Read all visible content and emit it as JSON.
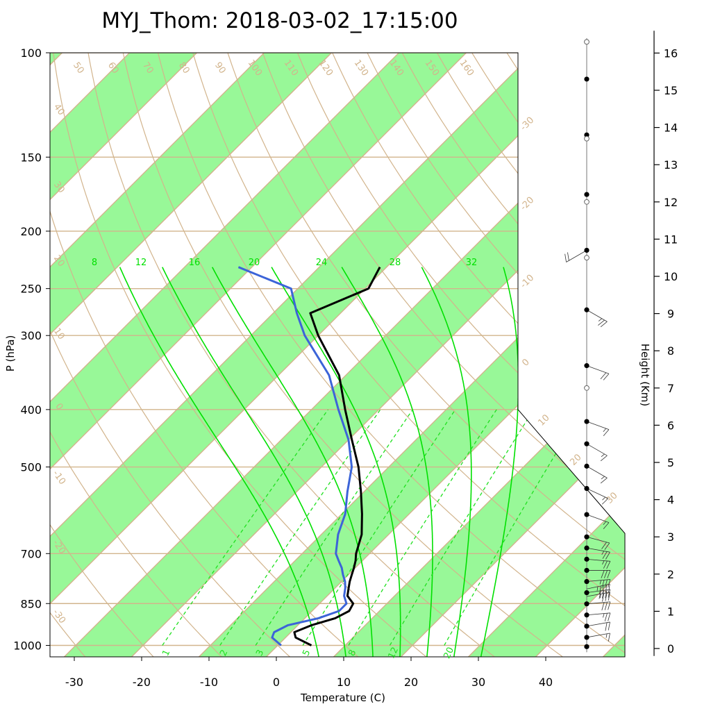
{
  "chart_data": {
    "type": "line",
    "title": "MYJ_Thom: 2018-03-02_17:15:00",
    "xlabel": "Temperature (C)",
    "ylabel": "P (hPa)",
    "y2label": "Height (Km)",
    "xlim": [
      -34,
      52
    ],
    "ylim": [
      1050,
      100
    ],
    "x_ticks": [
      "-30",
      "-20",
      "-10",
      "0",
      "10",
      "20",
      "30",
      "40"
    ],
    "pressure_levels": [
      "100",
      "150",
      "200",
      "250",
      "300",
      "400",
      "500",
      "700",
      "850",
      "1000"
    ],
    "height_ticks": [
      "0",
      "1",
      "2",
      "3",
      "4",
      "5",
      "6",
      "7",
      "8",
      "9",
      "10",
      "11",
      "12",
      "13",
      "14",
      "15",
      "16"
    ],
    "isotherm_labels": [
      "-30",
      "-20",
      "-10",
      "0",
      "10",
      "20",
      "30"
    ],
    "dry_adiabat_labels": [
      "50",
      "60",
      "70",
      "80",
      "90",
      "100",
      "110",
      "120",
      "130",
      "140",
      "150",
      "160"
    ],
    "left_edge_labels": [
      "40",
      "30",
      "20",
      "10",
      "0",
      "-10",
      "-20",
      "-30"
    ],
    "moist_adiabat_labels": [
      "8",
      "12",
      "16",
      "20",
      "24",
      "28",
      "32"
    ],
    "mixing_ratio_labels": [
      "1",
      "2",
      "3",
      "5",
      "8",
      "12",
      "20"
    ],
    "colors": {
      "band": "#98f898",
      "isotherm": "#d2b48c",
      "moist": "#00e000",
      "mixing": "#20e020",
      "temperature": "#000000",
      "dewpoint": "#3c64d8"
    },
    "series": [
      {
        "key": "temperature",
        "p": [
          1000,
          970,
          950,
          925,
          900,
          875,
          850,
          825,
          800,
          780,
          760,
          740,
          720,
          700,
          650,
          600,
          550,
          500,
          450,
          400,
          350,
          300,
          275,
          250,
          230
        ],
        "t": [
          5.0,
          1.5,
          0.5,
          2.0,
          4.5,
          5.5,
          5.0,
          3.0,
          2.0,
          1.2,
          0.5,
          -0.2,
          -1.0,
          -2.0,
          -4.0,
          -7.0,
          -10.5,
          -14.5,
          -19.5,
          -25.0,
          -31.0,
          -40.0,
          -44.5,
          -39.5,
          -41.0
        ]
      },
      {
        "key": "dewpoint",
        "p": [
          1000,
          970,
          950,
          925,
          900,
          875,
          850,
          825,
          800,
          780,
          760,
          740,
          720,
          700,
          650,
          600,
          550,
          500,
          450,
          400,
          350,
          300,
          275,
          250,
          230
        ],
        "t": [
          0.5,
          -2.0,
          -2.5,
          -1.5,
          2.0,
          4.0,
          4.0,
          2.5,
          1.5,
          0.5,
          -0.8,
          -2.0,
          -3.5,
          -5.0,
          -7.5,
          -9.5,
          -12.5,
          -15.5,
          -20.0,
          -26.0,
          -32.5,
          -42.0,
          -46.5,
          -51.0,
          -62.0
        ]
      }
    ],
    "wind_dots_km": [
      0.05,
      0.3,
      0.6,
      0.9,
      1.2,
      1.5,
      1.8,
      2.1,
      2.4,
      2.7,
      3.0,
      3.6,
      4.3,
      4.9,
      5.5,
      6.1,
      7.6,
      9.1,
      10.7,
      12.2,
      13.8,
      15.3
    ],
    "wind_open_km": [
      16.3,
      13.7,
      12.0,
      10.5,
      7.0
    ],
    "wind_barbs": [
      {
        "z": 0.3,
        "dir": 260,
        "spd": 15
      },
      {
        "z": 0.6,
        "dir": 260,
        "spd": 20
      },
      {
        "z": 0.9,
        "dir": 265,
        "spd": 25
      },
      {
        "z": 1.2,
        "dir": 265,
        "spd": 30
      },
      {
        "z": 1.4,
        "dir": 260,
        "spd": 35
      },
      {
        "z": 1.5,
        "dir": 262,
        "spd": 40
      },
      {
        "z": 1.6,
        "dir": 258,
        "spd": 45
      },
      {
        "z": 1.8,
        "dir": 265,
        "spd": 35
      },
      {
        "z": 2.1,
        "dir": 270,
        "spd": 30
      },
      {
        "z": 2.4,
        "dir": 275,
        "spd": 25
      },
      {
        "z": 2.7,
        "dir": 280,
        "spd": 25
      },
      {
        "z": 3.0,
        "dir": 285,
        "spd": 20
      },
      {
        "z": 3.6,
        "dir": 290,
        "spd": 15
      },
      {
        "z": 4.3,
        "dir": 295,
        "spd": 15
      },
      {
        "z": 4.9,
        "dir": 300,
        "spd": 15
      },
      {
        "z": 5.5,
        "dir": 300,
        "spd": 15
      },
      {
        "z": 6.1,
        "dir": 290,
        "spd": 15
      },
      {
        "z": 7.6,
        "dir": 290,
        "spd": 20
      },
      {
        "z": 9.1,
        "dir": 300,
        "spd": 25
      },
      {
        "z": 10.7,
        "dir": 60,
        "spd": 20
      }
    ]
  }
}
